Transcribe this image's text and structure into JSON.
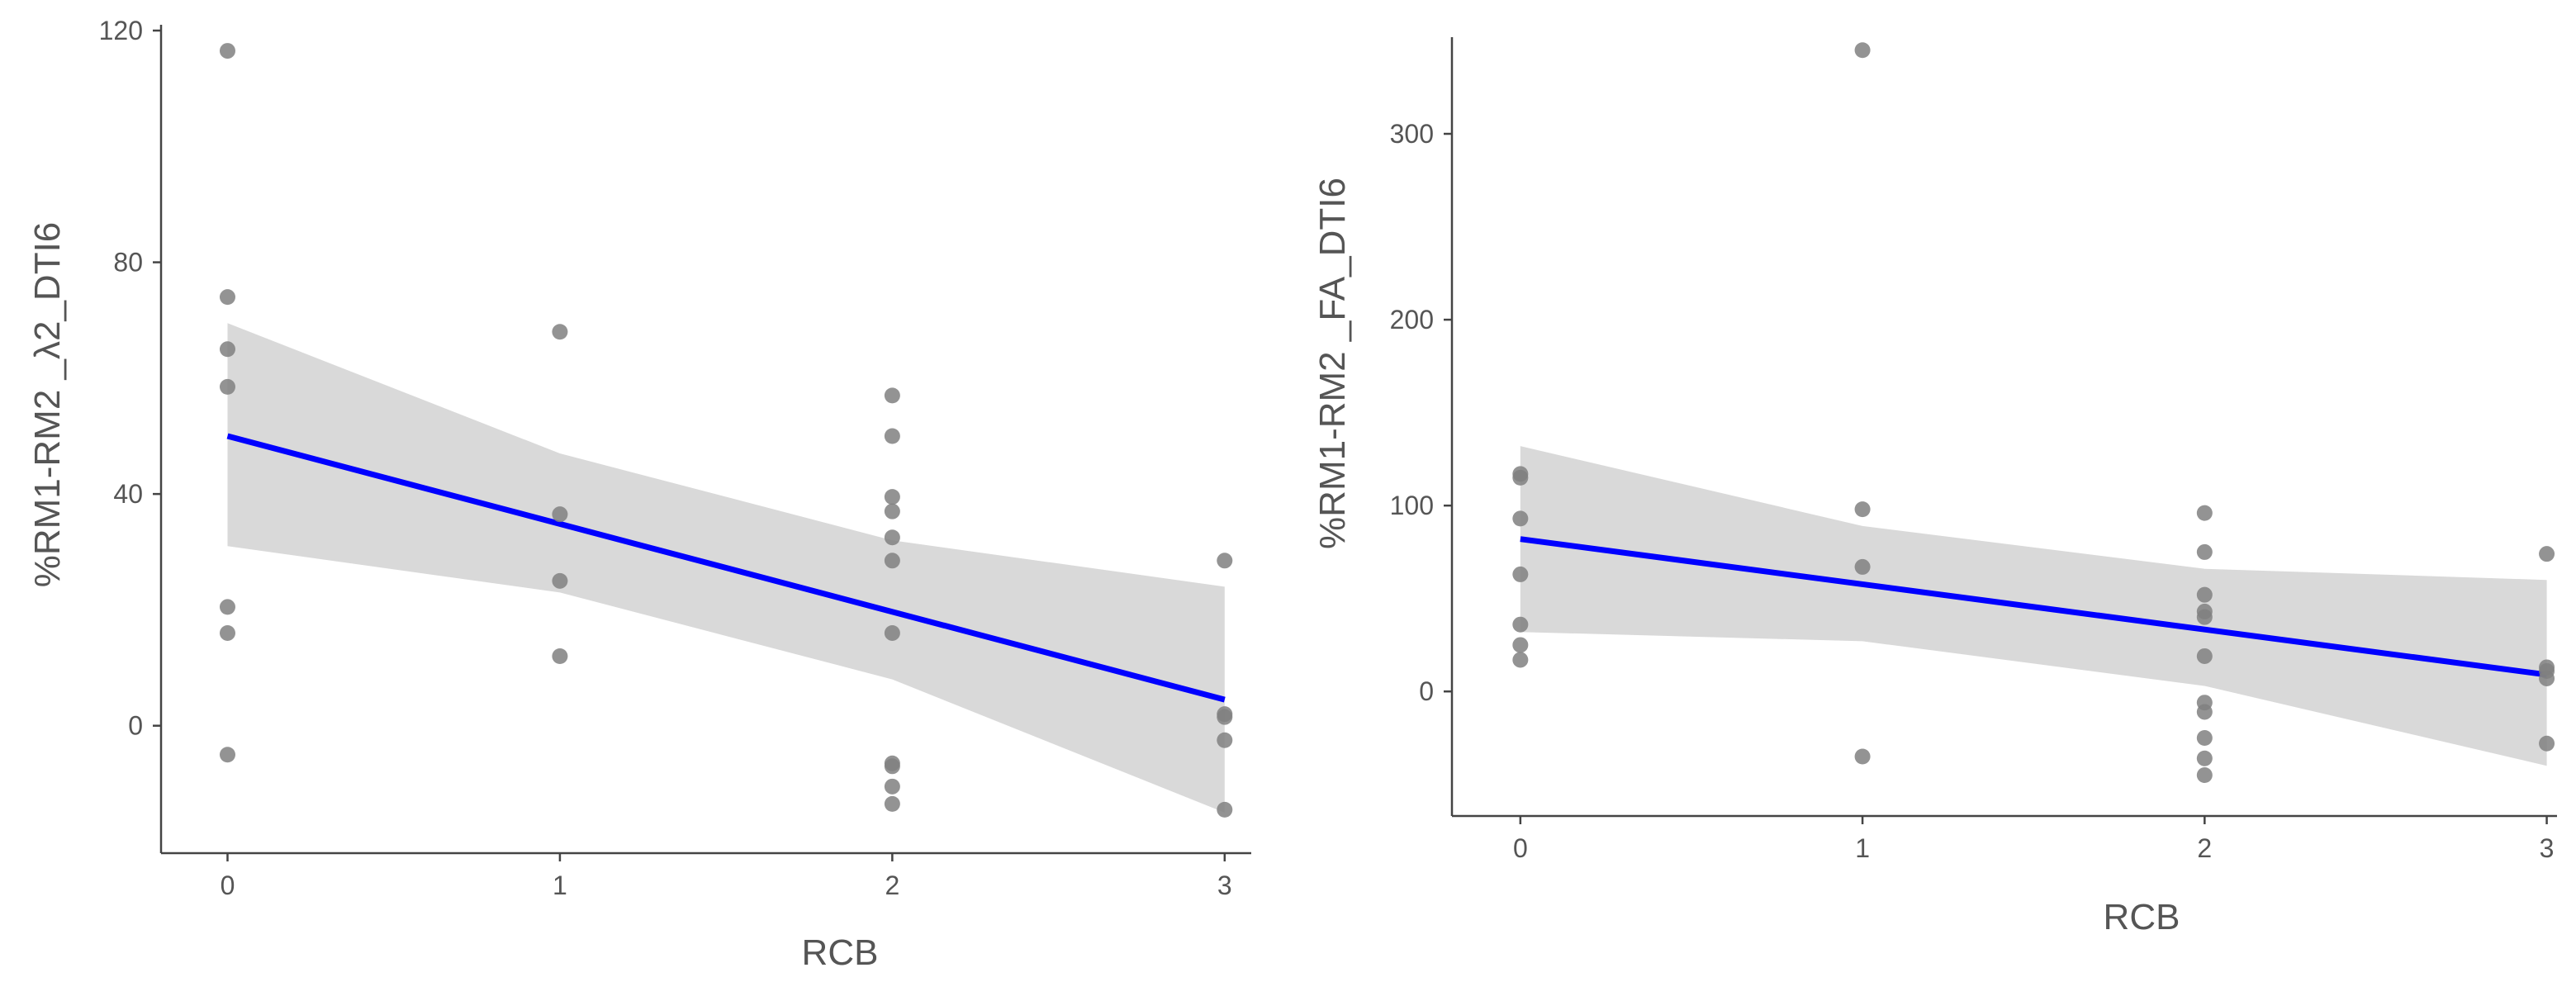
{
  "chart_data": [
    {
      "type": "scatter",
      "title": "",
      "xlabel": "RCB",
      "ylabel": "%RM1-RM2 _λ2_DTI6",
      "xlim": [
        -0.2,
        3.08
      ],
      "ylim": [
        -22,
        121
      ],
      "xticks": [
        0,
        1,
        2,
        3
      ],
      "yticks": [
        0,
        40,
        80,
        120
      ],
      "grid": false,
      "point_color": "#808080",
      "line_color": "#0000ff",
      "band_color": "#d9d9d9",
      "axis_color": "#444444",
      "points": [
        [
          0,
          116.5
        ],
        [
          0,
          74
        ],
        [
          0,
          65
        ],
        [
          0,
          58.5
        ],
        [
          0,
          20.5
        ],
        [
          0,
          16
        ],
        [
          0,
          -5
        ],
        [
          1,
          68
        ],
        [
          1,
          36.5
        ],
        [
          1,
          25
        ],
        [
          1,
          12
        ],
        [
          2,
          57
        ],
        [
          2,
          50
        ],
        [
          2,
          39.5
        ],
        [
          2,
          37
        ],
        [
          2,
          32.5
        ],
        [
          2,
          28.5
        ],
        [
          2,
          16
        ],
        [
          2,
          -6.5
        ],
        [
          2,
          -7
        ],
        [
          2,
          -10.5
        ],
        [
          2,
          -13.5
        ],
        [
          3,
          28.5
        ],
        [
          3,
          2
        ],
        [
          3,
          1.5
        ],
        [
          3,
          -2.5
        ],
        [
          3,
          -14.5
        ]
      ],
      "fit": {
        "x": [
          0,
          3
        ],
        "y": [
          50,
          4.5
        ]
      },
      "band": {
        "x": [
          0,
          1,
          2,
          3
        ],
        "upper": [
          69.5,
          47,
          32,
          24
        ],
        "lower": [
          31,
          23,
          8,
          -15
        ]
      }
    },
    {
      "type": "scatter",
      "title": "",
      "xlabel": "RCB",
      "ylabel": "%RM1-RM2 _FA_DTI6",
      "xlim": [
        -0.2,
        3.03
      ],
      "ylim": [
        -67,
        352
      ],
      "xticks": [
        0,
        1,
        2,
        3
      ],
      "yticks": [
        0,
        100,
        200,
        300
      ],
      "grid": false,
      "point_color": "#808080",
      "line_color": "#0000ff",
      "band_color": "#d9d9d9",
      "axis_color": "#444444",
      "points": [
        [
          0,
          117
        ],
        [
          0,
          115
        ],
        [
          0,
          93
        ],
        [
          0,
          63
        ],
        [
          0,
          36
        ],
        [
          0,
          25
        ],
        [
          0,
          17
        ],
        [
          1,
          345
        ],
        [
          1,
          98
        ],
        [
          1,
          67
        ],
        [
          1,
          -35
        ],
        [
          2,
          96
        ],
        [
          2,
          75
        ],
        [
          2,
          52
        ],
        [
          2,
          43
        ],
        [
          2,
          40
        ],
        [
          2,
          19
        ],
        [
          2,
          -6
        ],
        [
          2,
          -11
        ],
        [
          2,
          -25
        ],
        [
          2,
          -36
        ],
        [
          2,
          -45
        ],
        [
          3,
          74
        ],
        [
          3,
          13
        ],
        [
          3,
          11
        ],
        [
          3,
          7
        ],
        [
          3,
          -28
        ]
      ],
      "fit": {
        "x": [
          0,
          3
        ],
        "y": [
          82,
          9
        ]
      },
      "band": {
        "x": [
          0,
          1,
          2,
          3
        ],
        "upper": [
          132,
          89,
          66,
          60
        ],
        "lower": [
          32,
          27,
          3,
          -40
        ]
      }
    }
  ]
}
